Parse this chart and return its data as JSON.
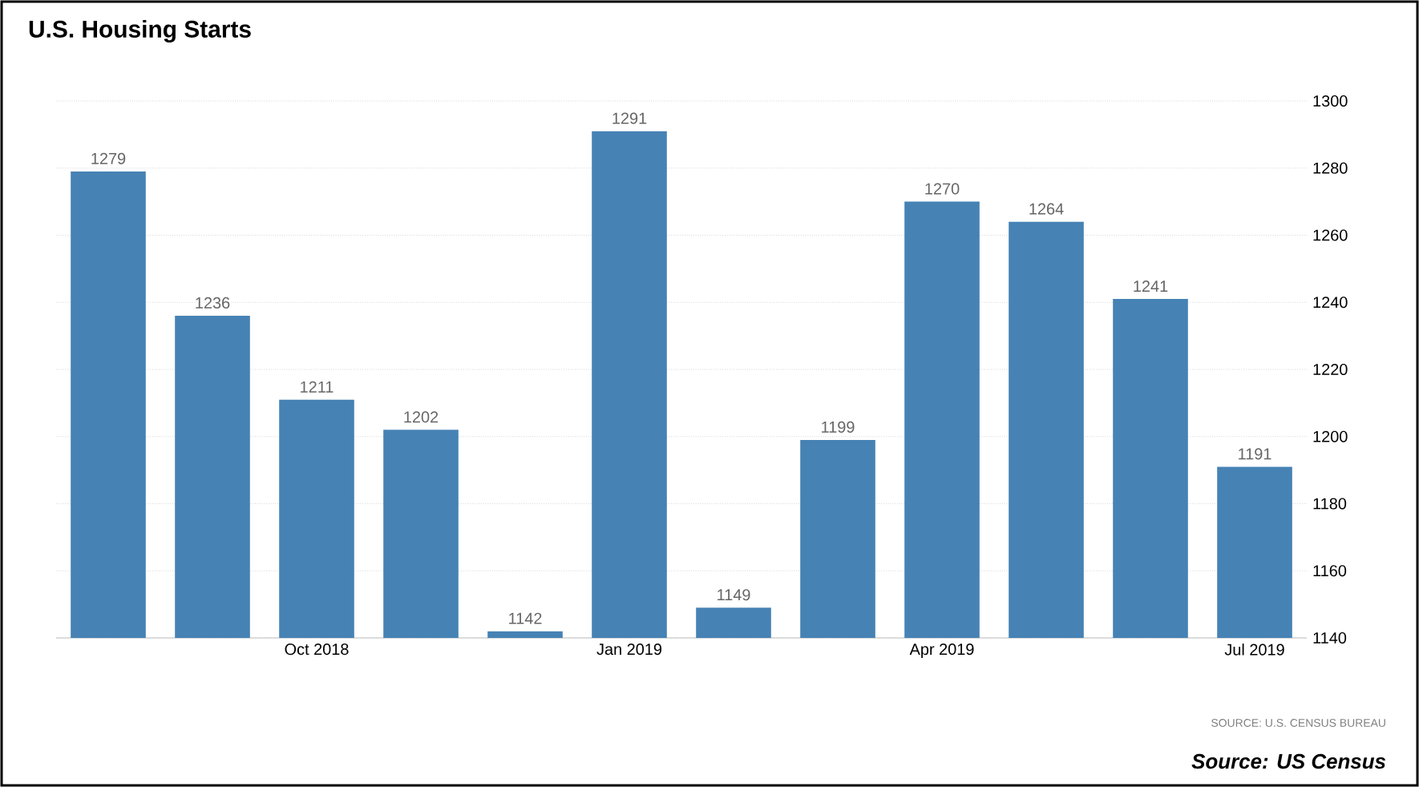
{
  "chart_data": {
    "type": "bar",
    "title": "U.S. Housing Starts",
    "categories": [
      null,
      null,
      "Oct 2018",
      null,
      null,
      "Jan 2019",
      null,
      null,
      "Apr 2019",
      null,
      null,
      "Jul 2019"
    ],
    "values": [
      1279,
      1236,
      1211,
      1202,
      1142,
      1291,
      1149,
      1199,
      1270,
      1264,
      1241,
      1191
    ],
    "color": "#4682b4",
    "ylim": [
      1140,
      1300
    ],
    "yticks": [
      1140,
      1160,
      1180,
      1200,
      1220,
      1240,
      1260,
      1280,
      1300
    ],
    "grid": "y",
    "data_labels": true,
    "annotations": [
      "SOURCE: U.S. CENSUS BUREAU",
      "Source: US Census"
    ]
  }
}
